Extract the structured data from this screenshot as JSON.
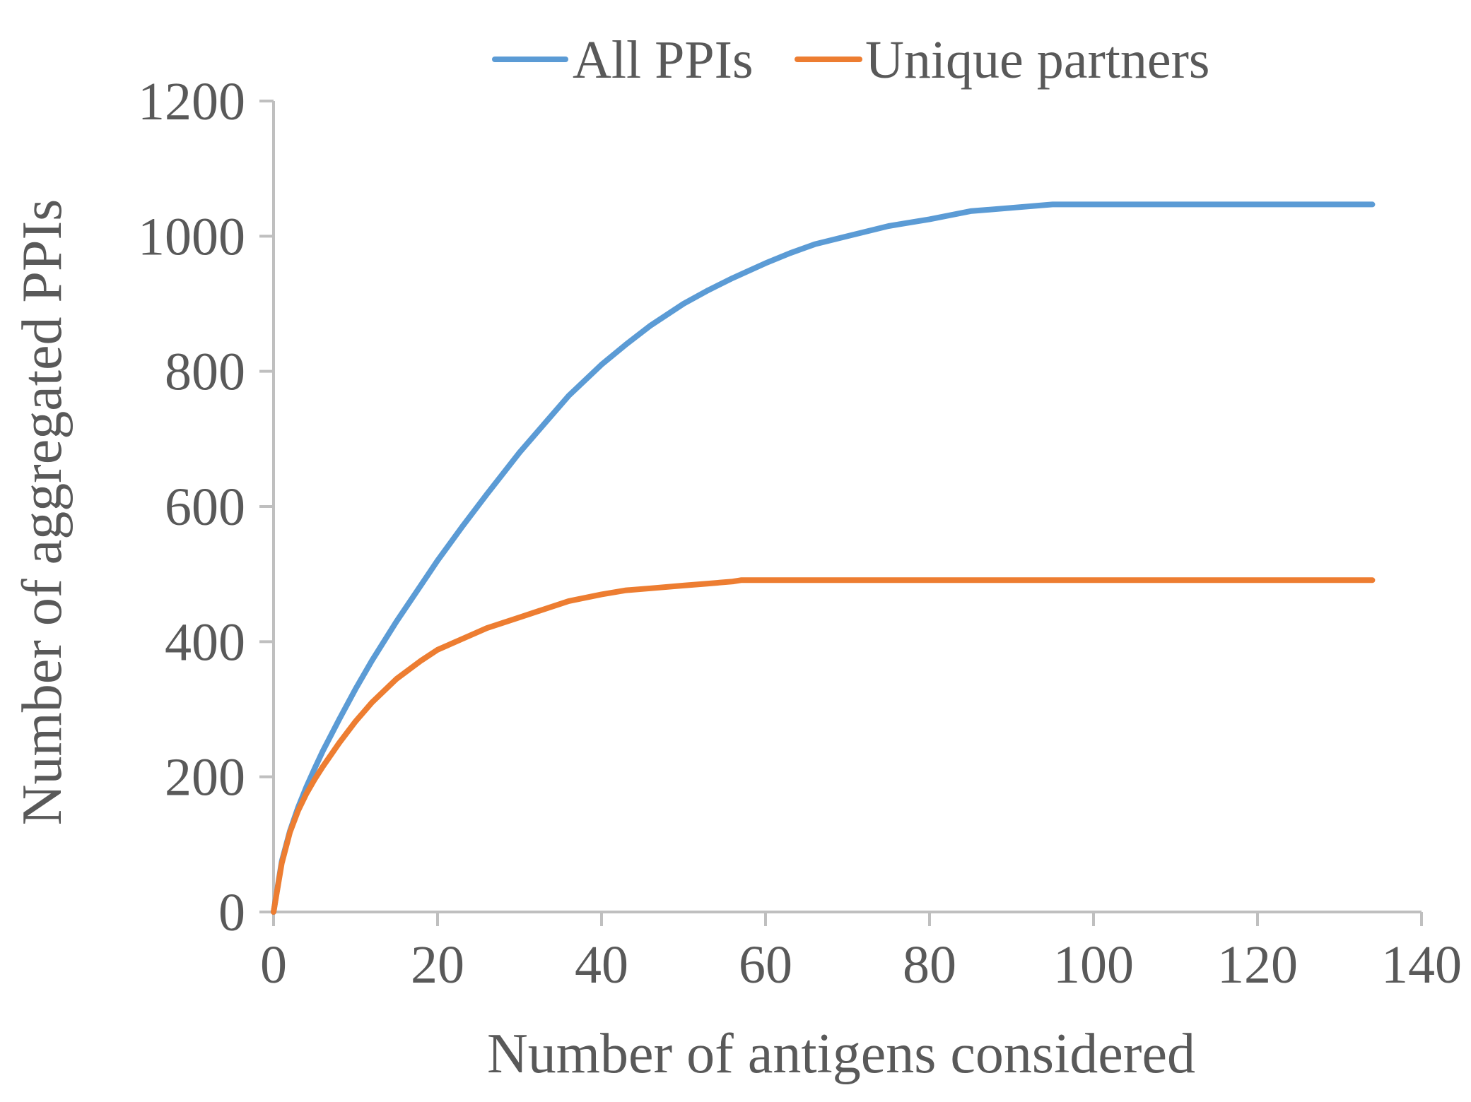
{
  "chart_data": {
    "type": "line",
    "xlabel": "Number of antigens considered",
    "ylabel": "Number of aggregated PPIs",
    "xlim": [
      0,
      140
    ],
    "ylim": [
      0,
      1200
    ],
    "xticks": [
      0,
      20,
      40,
      60,
      80,
      100,
      120,
      140
    ],
    "yticks": [
      0,
      200,
      400,
      600,
      800,
      1000,
      1200
    ],
    "grid": false,
    "legend_position": "top",
    "series": [
      {
        "name": "All PPIs",
        "color": "#5B9BD5",
        "x": [
          0,
          1,
          2,
          3,
          4,
          5,
          6,
          8,
          10,
          12,
          15,
          18,
          20,
          23,
          26,
          30,
          33,
          36,
          40,
          43,
          46,
          50,
          53,
          56,
          60,
          63,
          66,
          70,
          75,
          80,
          85,
          90,
          95,
          100,
          110,
          120,
          134
        ],
        "y": [
          0,
          75,
          120,
          155,
          185,
          212,
          238,
          285,
          330,
          372,
          430,
          484,
          520,
          570,
          618,
          680,
          722,
          764,
          810,
          840,
          868,
          900,
          920,
          938,
          960,
          975,
          988,
          1000,
          1015,
          1025,
          1037,
          1042,
          1047,
          1047,
          1047,
          1047,
          1047
        ]
      },
      {
        "name": "Unique partners",
        "color": "#ED7D31",
        "x": [
          0,
          1,
          2,
          3,
          4,
          5,
          6,
          8,
          10,
          12,
          15,
          18,
          20,
          23,
          26,
          30,
          33,
          36,
          40,
          43,
          46,
          50,
          53,
          56,
          57,
          60,
          80,
          100,
          120,
          134
        ],
        "y": [
          0,
          72,
          118,
          150,
          175,
          196,
          215,
          250,
          282,
          310,
          345,
          372,
          388,
          404,
          420,
          436,
          448,
          460,
          470,
          476,
          479,
          483,
          486,
          489,
          491,
          491,
          491,
          491,
          491,
          491
        ]
      }
    ]
  }
}
